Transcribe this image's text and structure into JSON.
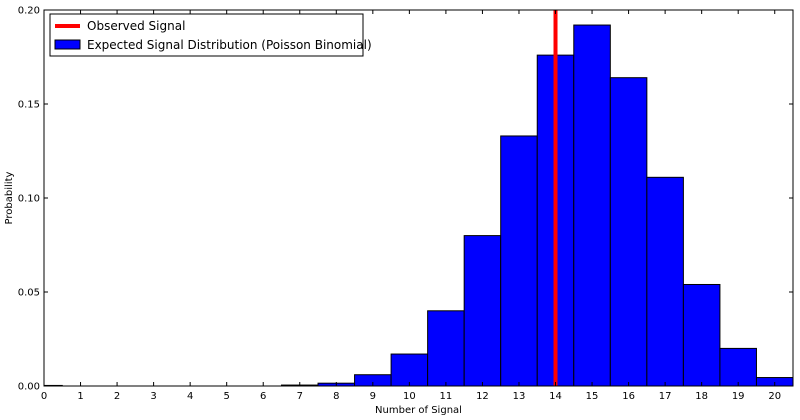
{
  "chart_data": {
    "type": "bar",
    "title": "",
    "xlabel": "Number of Signal",
    "ylabel": "Probability",
    "xlim": [
      0,
      20.5
    ],
    "ylim": [
      0,
      0.2
    ],
    "x_ticks": [
      0,
      1,
      2,
      3,
      4,
      5,
      6,
      7,
      8,
      9,
      10,
      11,
      12,
      13,
      14,
      15,
      16,
      17,
      18,
      19,
      20
    ],
    "y_ticks": [
      0.0,
      0.05,
      0.1,
      0.15,
      0.2
    ],
    "y_tick_labels": [
      "0.00",
      "0.05",
      "0.10",
      "0.15",
      "0.20"
    ],
    "grid": false,
    "legend_position": "top-left",
    "series": [
      {
        "name": "Expected Signal Distribution (Poisson Binomial)",
        "kind": "bar",
        "color": "#0000ff",
        "x": [
          0,
          1,
          2,
          3,
          4,
          5,
          6,
          7,
          8,
          9,
          10,
          11,
          12,
          13,
          14,
          15,
          16,
          17,
          18,
          19,
          20
        ],
        "values": [
          0.0003,
          0,
          0,
          0,
          0,
          0,
          0,
          0.0005,
          0.0015,
          0.006,
          0.017,
          0.04,
          0.08,
          0.133,
          0.176,
          0.192,
          0.164,
          0.111,
          0.054,
          0.02,
          0.0045
        ]
      },
      {
        "name": "Observed Signal",
        "kind": "vline",
        "color": "#ff0000",
        "x": 14
      }
    ]
  }
}
